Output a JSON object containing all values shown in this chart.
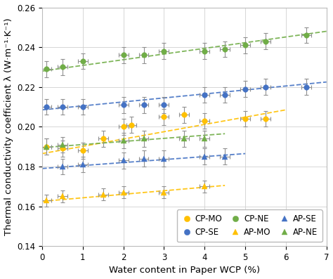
{
  "title": "",
  "xlabel": "Water content in Paper WCP (%)",
  "ylabel": "Thermal conductivity coefficient λ (W·m⁻¹·K⁻¹)",
  "xlim": [
    0,
    7
  ],
  "ylim": [
    0.14,
    0.26
  ],
  "xticks": [
    0,
    1,
    2,
    3,
    4,
    5,
    6,
    7
  ],
  "yticks": [
    0.14,
    0.16,
    0.18,
    0.2,
    0.22,
    0.24,
    0.26
  ],
  "CP_MO": {
    "x": [
      0.1,
      0.5,
      1.0,
      1.5,
      2.0,
      2.2,
      3.0,
      3.5,
      4.0,
      5.0,
      5.5
    ],
    "y": [
      0.19,
      0.189,
      0.188,
      0.194,
      0.2,
      0.201,
      0.205,
      0.206,
      0.203,
      0.204,
      0.204
    ],
    "xerr": [
      0.12,
      0.12,
      0.12,
      0.12,
      0.12,
      0.12,
      0.12,
      0.12,
      0.12,
      0.12,
      0.12
    ],
    "yerr": [
      0.004,
      0.004,
      0.004,
      0.004,
      0.004,
      0.004,
      0.004,
      0.004,
      0.004,
      0.004,
      0.004
    ],
    "color": "#FFC000",
    "marker": "o",
    "label": "CP-MO",
    "trend_x": [
      0.0,
      6.0
    ],
    "trend_y": [
      0.1865,
      0.2085
    ]
  },
  "CP_SE": {
    "x": [
      0.1,
      0.5,
      1.0,
      2.0,
      2.5,
      3.0,
      4.0,
      4.5,
      5.0,
      5.5,
      6.5
    ],
    "y": [
      0.21,
      0.21,
      0.21,
      0.211,
      0.211,
      0.211,
      0.216,
      0.216,
      0.219,
      0.22,
      0.22
    ],
    "xerr": [
      0.12,
      0.12,
      0.12,
      0.12,
      0.12,
      0.12,
      0.12,
      0.12,
      0.12,
      0.12,
      0.12
    ],
    "yerr": [
      0.004,
      0.004,
      0.004,
      0.004,
      0.004,
      0.004,
      0.004,
      0.004,
      0.004,
      0.004,
      0.004
    ],
    "color": "#4472C4",
    "marker": "o",
    "label": "CP-SE",
    "trend_x": [
      0.0,
      7.0
    ],
    "trend_y": [
      0.2085,
      0.2225
    ]
  },
  "CP_NE": {
    "x": [
      0.1,
      0.5,
      1.0,
      2.0,
      2.5,
      3.0,
      4.0,
      4.5,
      5.0,
      5.5,
      6.5
    ],
    "y": [
      0.229,
      0.23,
      0.233,
      0.236,
      0.236,
      0.238,
      0.238,
      0.239,
      0.241,
      0.243,
      0.246
    ],
    "xerr": [
      0.12,
      0.12,
      0.12,
      0.12,
      0.12,
      0.12,
      0.12,
      0.12,
      0.12,
      0.12,
      0.12
    ],
    "yerr": [
      0.004,
      0.004,
      0.004,
      0.004,
      0.004,
      0.004,
      0.004,
      0.004,
      0.004,
      0.004,
      0.004
    ],
    "color": "#70AD47",
    "marker": "o",
    "label": "CP-NE",
    "trend_x": [
      0.0,
      7.0
    ],
    "trend_y": [
      0.228,
      0.248
    ]
  },
  "AP_MO": {
    "x": [
      0.1,
      0.5,
      1.5,
      2.0,
      3.0,
      4.0
    ],
    "y": [
      0.163,
      0.165,
      0.166,
      0.167,
      0.167,
      0.17
    ],
    "xerr": [
      0.12,
      0.12,
      0.12,
      0.12,
      0.12,
      0.12
    ],
    "yerr": [
      0.003,
      0.003,
      0.003,
      0.003,
      0.003,
      0.003
    ],
    "color": "#FFC000",
    "marker": "^",
    "label": "AP-MO",
    "trend_x": [
      0.0,
      4.5
    ],
    "trend_y": [
      0.1625,
      0.1705
    ]
  },
  "AP_SE": {
    "x": [
      0.5,
      1.0,
      2.0,
      2.5,
      3.0,
      4.0,
      4.5
    ],
    "y": [
      0.18,
      0.181,
      0.183,
      0.184,
      0.184,
      0.185,
      0.185
    ],
    "xerr": [
      0.12,
      0.12,
      0.12,
      0.12,
      0.12,
      0.12,
      0.12
    ],
    "yerr": [
      0.004,
      0.004,
      0.004,
      0.004,
      0.004,
      0.004,
      0.004
    ],
    "color": "#4472C4",
    "marker": "^",
    "label": "AP-SE",
    "trend_x": [
      0.0,
      5.0
    ],
    "trend_y": [
      0.179,
      0.1865
    ]
  },
  "AP_NE": {
    "x": [
      0.1,
      0.5,
      2.0,
      2.5,
      3.5,
      4.0
    ],
    "y": [
      0.19,
      0.191,
      0.193,
      0.194,
      0.194,
      0.194
    ],
    "xerr": [
      0.12,
      0.12,
      0.12,
      0.12,
      0.12,
      0.12
    ],
    "yerr": [
      0.004,
      0.004,
      0.004,
      0.004,
      0.004,
      0.004
    ],
    "color": "#70AD47",
    "marker": "^",
    "label": "AP-NE",
    "trend_x": [
      0.0,
      4.5
    ],
    "trend_y": [
      0.1895,
      0.1965
    ]
  },
  "bg_color": "#FFFFFF",
  "grid_color": "#D0D0D0",
  "errorbar_color": "#909090",
  "legend_fontsize": 8.5,
  "axis_fontsize": 9.5,
  "tick_fontsize": 8.5
}
